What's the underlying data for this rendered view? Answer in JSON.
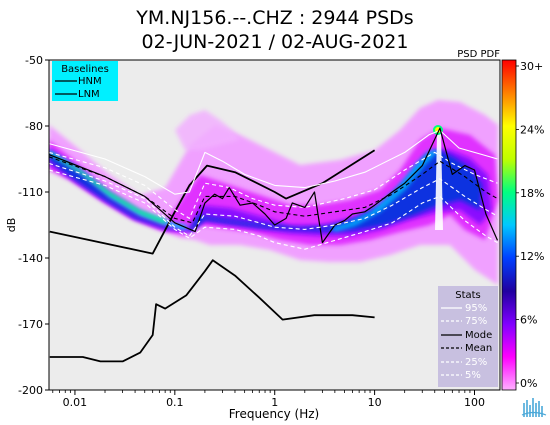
{
  "title_line1": "YM.NJ156.--.CHZ : 2944 PSDs",
  "title_line2": "02-JUN-2021 / 02-AUG-2021",
  "chart_data": {
    "type": "heatmap",
    "title": "YM.NJ156.--.CHZ : 2944 PSDs",
    "subtitle": "02-JUN-2021 / 02-AUG-2021",
    "xlabel": "Frequency (Hz)",
    "ylabel": "dB",
    "xscale": "log",
    "xlim": [
      0.0055,
      180
    ],
    "ylim": [
      -200,
      -50
    ],
    "xticks": [
      {
        "value": 0.01,
        "label": "0.01"
      },
      {
        "value": 0.1,
        "label": "0.1"
      },
      {
        "value": 1,
        "label": "1"
      },
      {
        "value": 10,
        "label": "10"
      },
      {
        "value": 100,
        "label": "100"
      }
    ],
    "yticks": [
      {
        "value": -50,
        "label": "-50"
      },
      {
        "value": -80,
        "label": "-80"
      },
      {
        "value": -110,
        "label": "-110"
      },
      {
        "value": -140,
        "label": "-140"
      },
      {
        "value": -170,
        "label": "-170"
      },
      {
        "value": -200,
        "label": "-200"
      }
    ],
    "colorbar": {
      "label": "PSD PDF",
      "ticks": [
        "30+",
        "24%",
        "18%",
        "12%",
        "6%",
        "0%"
      ],
      "colors": [
        "#ff0000",
        "#ff8000",
        "#ffff00",
        "#00ff80",
        "#00c8ff",
        "#0040ff",
        "#2000a0",
        "#8000ff",
        "#ff00ff",
        "#ffb0ff"
      ]
    },
    "baselines_legend": {
      "title": "Baselines",
      "items": [
        "HNM",
        "LNM"
      ],
      "background": "#00f0ff"
    },
    "stats_legend": {
      "title": "Stats",
      "items": [
        "95%",
        "75%",
        "Mode",
        "Mean",
        "25%",
        "5%"
      ],
      "background": "#c8c0e0"
    },
    "series": [
      {
        "name": "HNM",
        "color": "#000000",
        "points": [
          [
            0.0056,
            -128
          ],
          [
            0.06,
            -138
          ],
          [
            0.1,
            -119
          ],
          [
            0.14,
            -107
          ],
          [
            0.21,
            -98
          ],
          [
            0.4,
            -101
          ],
          [
            1,
            -110
          ],
          [
            1.3,
            -113
          ],
          [
            3,
            -106
          ],
          [
            10,
            -91
          ]
        ]
      },
      {
        "name": "LNM",
        "color": "#000000",
        "points": [
          [
            0.0056,
            -185
          ],
          [
            0.012,
            -185
          ],
          [
            0.018,
            -187
          ],
          [
            0.03,
            -187
          ],
          [
            0.045,
            -183
          ],
          [
            0.06,
            -175
          ],
          [
            0.065,
            -161
          ],
          [
            0.08,
            -163
          ],
          [
            0.13,
            -157
          ],
          [
            0.2,
            -146
          ],
          [
            0.24,
            -141
          ],
          [
            0.4,
            -148
          ],
          [
            0.7,
            -158
          ],
          [
            1.2,
            -168
          ],
          [
            2.5,
            -166
          ],
          [
            6,
            -166
          ],
          [
            10,
            -167
          ]
        ]
      },
      {
        "name": "95%",
        "style": "white-solid",
        "points": [
          [
            0.0055,
            -88
          ],
          [
            0.02,
            -95
          ],
          [
            0.05,
            -103
          ],
          [
            0.1,
            -111
          ],
          [
            0.14,
            -110
          ],
          [
            0.2,
            -92
          ],
          [
            0.3,
            -96
          ],
          [
            0.5,
            -102
          ],
          [
            1,
            -107
          ],
          [
            2,
            -108
          ],
          [
            4,
            -105
          ],
          [
            8,
            -101
          ],
          [
            20,
            -92
          ],
          [
            35,
            -84
          ],
          [
            45,
            -82
          ],
          [
            70,
            -90
          ],
          [
            120,
            -93
          ],
          [
            170,
            -95
          ]
        ]
      },
      {
        "name": "75%",
        "style": "white-dash",
        "points": [
          [
            0.0055,
            -92
          ],
          [
            0.02,
            -99
          ],
          [
            0.05,
            -107
          ],
          [
            0.1,
            -118
          ],
          [
            0.14,
            -122
          ],
          [
            0.2,
            -106
          ],
          [
            0.35,
            -108
          ],
          [
            0.6,
            -113
          ],
          [
            1,
            -116
          ],
          [
            2,
            -117
          ],
          [
            5,
            -113
          ],
          [
            10,
            -109
          ],
          [
            20,
            -100
          ],
          [
            40,
            -92
          ],
          [
            60,
            -97
          ],
          [
            100,
            -102
          ],
          [
            170,
            -106
          ]
        ]
      },
      {
        "name": "Mode",
        "style": "black-solid",
        "points": [
          [
            0.0055,
            -93
          ],
          [
            0.02,
            -103
          ],
          [
            0.05,
            -112
          ],
          [
            0.1,
            -124
          ],
          [
            0.16,
            -128
          ],
          [
            0.2,
            -115
          ],
          [
            0.25,
            -111
          ],
          [
            0.3,
            -113
          ],
          [
            0.35,
            -108
          ],
          [
            0.45,
            -116
          ],
          [
            0.6,
            -115
          ],
          [
            0.8,
            -120
          ],
          [
            1,
            -125
          ],
          [
            1.3,
            -122
          ],
          [
            1.5,
            -115
          ],
          [
            2,
            -117
          ],
          [
            2.5,
            -110
          ],
          [
            3,
            -133
          ],
          [
            4,
            -125
          ],
          [
            5,
            -123
          ],
          [
            6,
            -120
          ],
          [
            8,
            -119
          ],
          [
            10,
            -116
          ],
          [
            15,
            -110
          ],
          [
            20,
            -106
          ],
          [
            30,
            -98
          ],
          [
            45,
            -81
          ],
          [
            60,
            -102
          ],
          [
            80,
            -98
          ],
          [
            100,
            -100
          ],
          [
            130,
            -120
          ],
          [
            170,
            -132
          ]
        ]
      },
      {
        "name": "Mean",
        "style": "black-dash",
        "points": [
          [
            0.0055,
            -94
          ],
          [
            0.02,
            -103
          ],
          [
            0.05,
            -112
          ],
          [
            0.1,
            -122
          ],
          [
            0.15,
            -124
          ],
          [
            0.2,
            -112
          ],
          [
            0.4,
            -112
          ],
          [
            0.7,
            -116
          ],
          [
            1,
            -119
          ],
          [
            2,
            -121
          ],
          [
            4,
            -119
          ],
          [
            8,
            -117
          ],
          [
            15,
            -111
          ],
          [
            30,
            -102
          ],
          [
            45,
            -96
          ],
          [
            80,
            -103
          ],
          [
            130,
            -110
          ],
          [
            170,
            -113
          ]
        ]
      },
      {
        "name": "25%",
        "style": "white-dash",
        "points": [
          [
            0.0055,
            -97
          ],
          [
            0.02,
            -105
          ],
          [
            0.05,
            -113
          ],
          [
            0.1,
            -126
          ],
          [
            0.14,
            -130
          ],
          [
            0.2,
            -120
          ],
          [
            0.4,
            -121
          ],
          [
            0.7,
            -124
          ],
          [
            1,
            -126
          ],
          [
            2,
            -127
          ],
          [
            4,
            -125
          ],
          [
            8,
            -122
          ],
          [
            15,
            -116
          ],
          [
            30,
            -108
          ],
          [
            45,
            -104
          ],
          [
            80,
            -112
          ],
          [
            130,
            -118
          ],
          [
            170,
            -121
          ]
        ]
      },
      {
        "name": "5%",
        "style": "white-dash",
        "points": [
          [
            0.0055,
            -100
          ],
          [
            0.02,
            -107
          ],
          [
            0.05,
            -115
          ],
          [
            0.1,
            -127
          ],
          [
            0.14,
            -131
          ],
          [
            0.2,
            -126
          ],
          [
            0.4,
            -127
          ],
          [
            0.7,
            -130
          ],
          [
            1,
            -133
          ],
          [
            2,
            -136
          ],
          [
            4,
            -132
          ],
          [
            8,
            -128
          ],
          [
            15,
            -124
          ],
          [
            30,
            -115
          ],
          [
            45,
            -112
          ],
          [
            80,
            -123
          ],
          [
            130,
            -130
          ],
          [
            170,
            -133
          ]
        ]
      }
    ]
  }
}
